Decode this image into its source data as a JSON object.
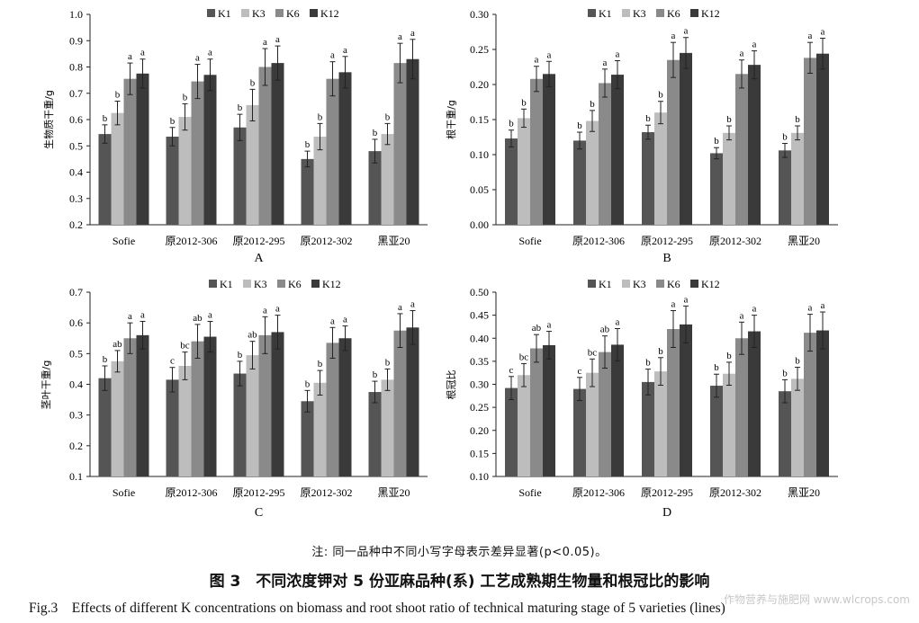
{
  "footnote": "注: 同一品种中不同小写字母表示差异显著(p<0.05)。",
  "caption_cn": "图 3　不同浓度钾对 5 份亚麻品种(系) 工艺成熟期生物量和根冠比的影响",
  "caption_en": "Fig.3　Effects of different K concentrations on biomass and root shoot ratio of technical maturing stage of 5 varieties (lines)",
  "watermark": "作物营养与施肥网 www.wlcrops.com",
  "colors": {
    "K1": "#555555",
    "K3": "#bdbdbd",
    "K6": "#8a8a8a",
    "K12": "#3a3a3a"
  },
  "chart_data": [
    {
      "type": "bar",
      "panel": "A",
      "ylabel": "生物质干重/g",
      "categories": [
        "Sofie",
        "原2012-306",
        "原2012-295",
        "原2012-302",
        "黑亚20"
      ],
      "ylim": [
        0.2,
        1.0
      ],
      "yticks": [
        "0.2",
        "0.3",
        "0.4",
        "0.5",
        "0.6",
        "0.7",
        "0.8",
        "0.9",
        "1.0"
      ],
      "legend": "top",
      "series": [
        {
          "name": "K1",
          "values": [
            0.545,
            0.535,
            0.57,
            0.45,
            0.48
          ],
          "errors": [
            0.035,
            0.035,
            0.05,
            0.03,
            0.045
          ],
          "letters": [
            "b",
            "b",
            "b",
            "b",
            "b"
          ]
        },
        {
          "name": "K3",
          "values": [
            0.625,
            0.61,
            0.655,
            0.535,
            0.545
          ],
          "errors": [
            0.045,
            0.05,
            0.06,
            0.05,
            0.04
          ],
          "letters": [
            "b",
            "b",
            "b",
            "b",
            "b"
          ]
        },
        {
          "name": "K6",
          "values": [
            0.755,
            0.745,
            0.8,
            0.755,
            0.815
          ],
          "errors": [
            0.06,
            0.065,
            0.07,
            0.065,
            0.075
          ],
          "letters": [
            "a",
            "a",
            "a",
            "a",
            "a"
          ]
        },
        {
          "name": "K12",
          "values": [
            0.775,
            0.77,
            0.815,
            0.78,
            0.83
          ],
          "errors": [
            0.055,
            0.06,
            0.065,
            0.06,
            0.075
          ],
          "letters": [
            "a",
            "a",
            "a",
            "a",
            "a"
          ]
        }
      ]
    },
    {
      "type": "bar",
      "panel": "B",
      "ylabel": "根干重/g",
      "categories": [
        "Sofie",
        "原2012-306",
        "原2012-295",
        "原2012-302",
        "黑亚20"
      ],
      "ylim": [
        0.0,
        0.3
      ],
      "yticks": [
        "0.00",
        "0.05",
        "0.10",
        "0.15",
        "0.20",
        "0.25",
        "0.30"
      ],
      "legend": "top",
      "series": [
        {
          "name": "K1",
          "values": [
            0.123,
            0.12,
            0.132,
            0.102,
            0.106
          ],
          "errors": [
            0.012,
            0.012,
            0.01,
            0.008,
            0.01
          ],
          "letters": [
            "b",
            "b",
            "b",
            "b",
            "b"
          ]
        },
        {
          "name": "K3",
          "values": [
            0.152,
            0.148,
            0.16,
            0.131,
            0.131
          ],
          "errors": [
            0.013,
            0.015,
            0.016,
            0.01,
            0.01
          ],
          "letters": [
            "b",
            "b",
            "b",
            "b",
            "b"
          ]
        },
        {
          "name": "K6",
          "values": [
            0.208,
            0.202,
            0.235,
            0.215,
            0.238
          ],
          "errors": [
            0.018,
            0.02,
            0.025,
            0.02,
            0.022
          ],
          "letters": [
            "a",
            "a",
            "a",
            "a",
            "a"
          ]
        },
        {
          "name": "K12",
          "values": [
            0.215,
            0.214,
            0.245,
            0.228,
            0.244
          ],
          "errors": [
            0.018,
            0.02,
            0.022,
            0.02,
            0.022
          ],
          "letters": [
            "a",
            "a",
            "a",
            "a",
            "a"
          ]
        }
      ]
    },
    {
      "type": "bar",
      "panel": "C",
      "ylabel": "茎叶干重/g",
      "categories": [
        "Sofie",
        "原2012-306",
        "原2012-295",
        "原2012-302",
        "黑亚20"
      ],
      "ylim": [
        0.1,
        0.7
      ],
      "yticks": [
        "0.1",
        "0.2",
        "0.3",
        "0.4",
        "0.5",
        "0.6",
        "0.7"
      ],
      "legend": "top",
      "series": [
        {
          "name": "K1",
          "values": [
            0.42,
            0.415,
            0.435,
            0.345,
            0.375
          ],
          "errors": [
            0.04,
            0.04,
            0.04,
            0.035,
            0.035
          ],
          "letters": [
            "b",
            "c",
            "b",
            "b",
            "b"
          ]
        },
        {
          "name": "K3",
          "values": [
            0.475,
            0.46,
            0.495,
            0.405,
            0.415
          ],
          "errors": [
            0.035,
            0.045,
            0.045,
            0.04,
            0.035
          ],
          "letters": [
            "ab",
            "bc",
            "ab",
            "b",
            "b"
          ]
        },
        {
          "name": "K6",
          "values": [
            0.55,
            0.54,
            0.56,
            0.535,
            0.575
          ],
          "errors": [
            0.05,
            0.055,
            0.06,
            0.05,
            0.055
          ],
          "letters": [
            "a",
            "ab",
            "a",
            "a",
            "a"
          ]
        },
        {
          "name": "K12",
          "values": [
            0.56,
            0.555,
            0.57,
            0.55,
            0.585
          ],
          "errors": [
            0.045,
            0.05,
            0.055,
            0.04,
            0.055
          ],
          "letters": [
            "a",
            "a",
            "a",
            "a",
            "a"
          ]
        }
      ]
    },
    {
      "type": "bar",
      "panel": "D",
      "ylabel": "根冠比",
      "categories": [
        "Sofie",
        "原2012-306",
        "原2012-295",
        "原2012-302",
        "黑亚20"
      ],
      "ylim": [
        0.1,
        0.5
      ],
      "yticks": [
        "0.10",
        "0.15",
        "0.20",
        "0.25",
        "0.30",
        "0.35",
        "0.40",
        "0.45",
        "0.50"
      ],
      "legend": "top",
      "series": [
        {
          "name": "K1",
          "values": [
            0.292,
            0.29,
            0.305,
            0.297,
            0.285
          ],
          "errors": [
            0.025,
            0.025,
            0.028,
            0.025,
            0.025
          ],
          "letters": [
            "c",
            "c",
            "b",
            "b",
            "b"
          ]
        },
        {
          "name": "K3",
          "values": [
            0.32,
            0.325,
            0.328,
            0.323,
            0.312
          ],
          "errors": [
            0.025,
            0.03,
            0.03,
            0.025,
            0.025
          ],
          "letters": [
            "bc",
            "bc",
            "b",
            "b",
            "b"
          ]
        },
        {
          "name": "K6",
          "values": [
            0.378,
            0.37,
            0.42,
            0.4,
            0.412
          ],
          "errors": [
            0.03,
            0.035,
            0.04,
            0.035,
            0.04
          ],
          "letters": [
            "ab",
            "ab",
            "a",
            "a",
            "a"
          ]
        },
        {
          "name": "K12",
          "values": [
            0.385,
            0.386,
            0.43,
            0.415,
            0.417
          ],
          "errors": [
            0.03,
            0.035,
            0.04,
            0.035,
            0.04
          ],
          "letters": [
            "a",
            "a",
            "a",
            "a",
            "a"
          ]
        }
      ]
    }
  ]
}
